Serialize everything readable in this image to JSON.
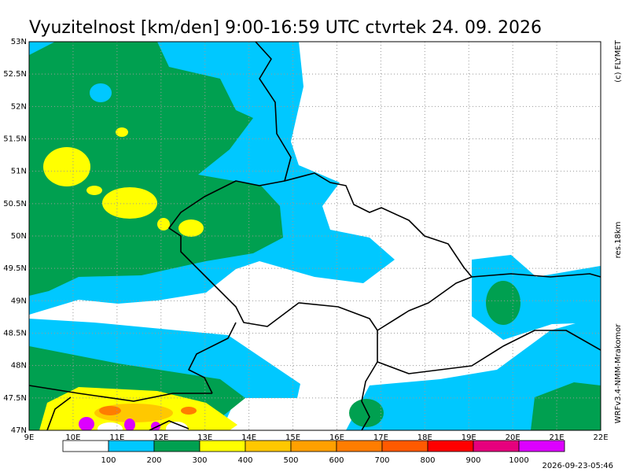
{
  "header": {
    "title": "Vyuzitelnost [km/den] 9:00-16:59 UTC ctvrtek 24. 09. 2026"
  },
  "map": {
    "lon_labels": [
      "9E",
      "10E",
      "11E",
      "12E",
      "13E",
      "14E",
      "15E",
      "16E",
      "17E",
      "18E",
      "19E",
      "20E",
      "21E",
      "22E"
    ],
    "lat_labels": [
      "53N",
      "52.5N",
      "52N",
      "51.5N",
      "51N",
      "50.5N",
      "50N",
      "49.5N",
      "49N",
      "48.5N",
      "48N",
      "47.5N",
      "47N"
    ]
  },
  "colorbar": {
    "colors": [
      "#ffffff",
      "#00c8ff",
      "#00a050",
      "#ffff00",
      "#ffc800",
      "#ffa000",
      "#ff7d00",
      "#ff5a00",
      "#ff0000",
      "#e6007d",
      "#dc00ff"
    ],
    "labels": [
      "100",
      "200",
      "300",
      "400",
      "500",
      "600",
      "700",
      "800",
      "900",
      "1000"
    ]
  },
  "side_texts": {
    "copyright": "(c) FLYMET",
    "resolution": "res.18km",
    "model": "WRFv3.4-NMM-Mrakomor",
    "timestamp": "2026-09-23-05:46"
  }
}
